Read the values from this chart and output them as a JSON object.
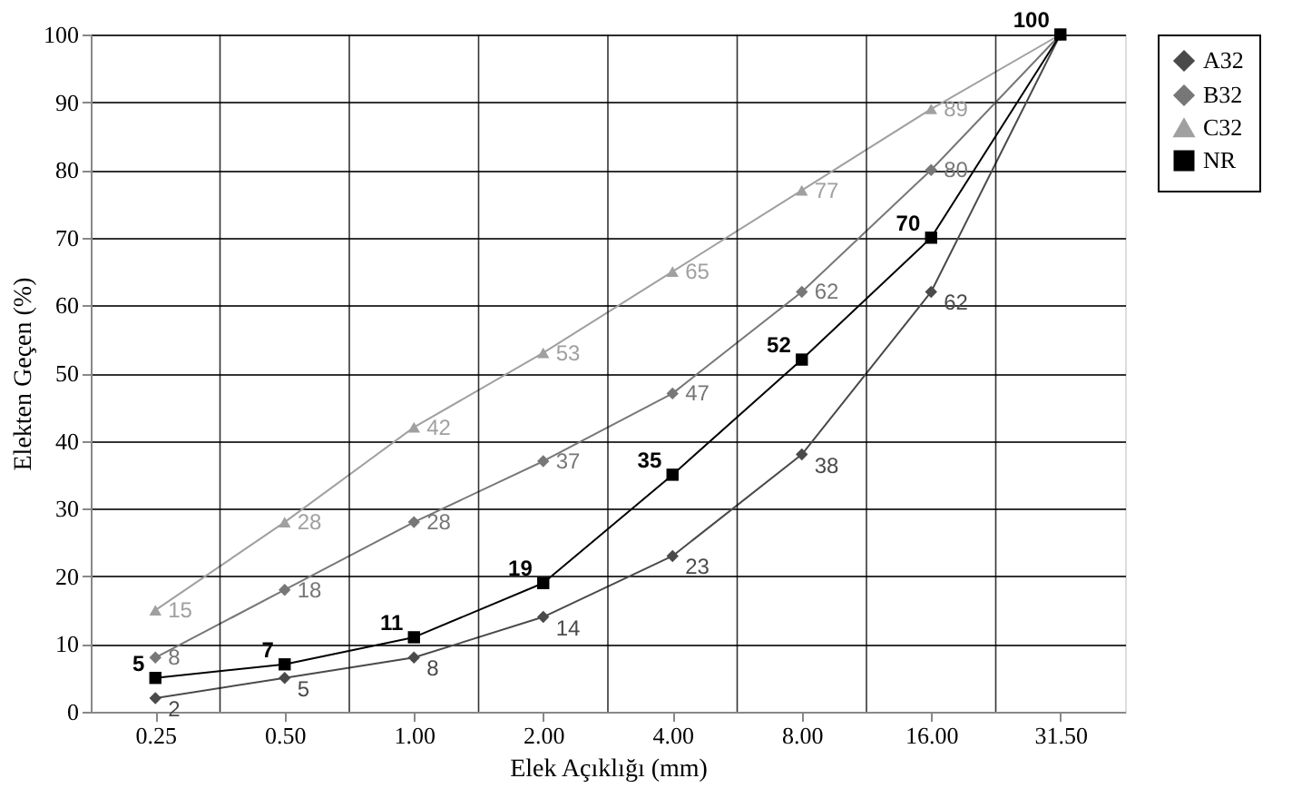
{
  "chart_data": {
    "type": "line",
    "xlabel": "Elek Açıklığı (mm)",
    "ylabel": "Elekten Geçen (%)",
    "categories": [
      "0.25",
      "0.50",
      "1.00",
      "2.00",
      "4.00",
      "8.00",
      "16.00",
      "31.50"
    ],
    "series": [
      {
        "name": "A32",
        "color": "#4a4a4a",
        "marker": "diamond",
        "values": [
          2,
          5,
          8,
          14,
          23,
          38,
          62,
          100
        ],
        "value_labels": [
          "2",
          "5",
          "8",
          "14",
          "23",
          "38",
          "62",
          null
        ]
      },
      {
        "name": "B32",
        "color": "#777777",
        "marker": "diamond",
        "values": [
          8,
          18,
          28,
          37,
          47,
          62,
          80,
          100
        ],
        "value_labels": [
          "8",
          "18",
          "28",
          "37",
          "47",
          "62",
          "80",
          null
        ]
      },
      {
        "name": "C32",
        "color": "#a0a0a0",
        "marker": "triangle",
        "values": [
          15,
          28,
          42,
          53,
          65,
          77,
          89,
          100
        ],
        "value_labels": [
          "15",
          "28",
          "42",
          "53",
          "65",
          "77",
          "89",
          null
        ]
      },
      {
        "name": "NR",
        "color": "#000000",
        "marker": "square",
        "values": [
          5,
          7,
          11,
          19,
          35,
          52,
          70,
          100
        ],
        "value_labels": [
          "5",
          "7",
          "11",
          "19",
          "35",
          "52",
          "70",
          "100"
        ]
      }
    ],
    "ylim": [
      0,
      100
    ],
    "yticks": [
      0,
      10,
      20,
      30,
      40,
      50,
      60,
      70,
      80,
      90,
      100
    ],
    "grid": true,
    "legend": "right",
    "line_style": "solid"
  }
}
